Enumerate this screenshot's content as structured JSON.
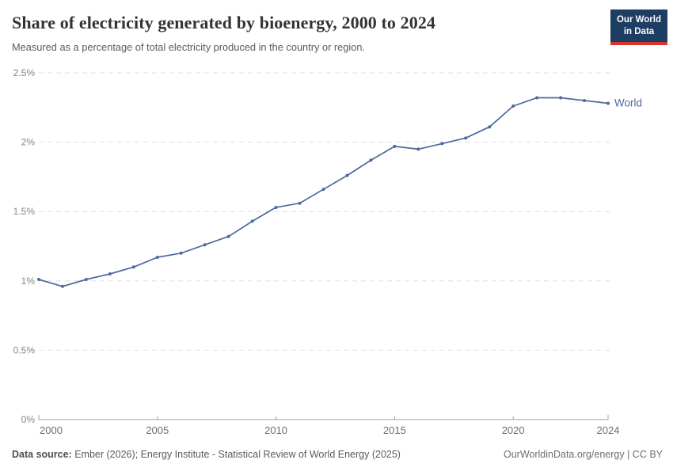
{
  "header": {
    "title": "Share of electricity generated by bioenergy, 2000 to 2024",
    "subtitle": "Measured as a percentage of total electricity produced in the country or region.",
    "logo_line1": "Our World",
    "logo_line2": "in Data"
  },
  "chart_data": {
    "type": "line",
    "title": "Share of electricity generated by bioenergy, 2000 to 2024",
    "xlabel": "",
    "ylabel": "",
    "xlim": [
      2000,
      2024
    ],
    "ylim": [
      0,
      2.5
    ],
    "x_ticks": [
      2000,
      2005,
      2010,
      2015,
      2020,
      2024
    ],
    "y_ticks": [
      {
        "value": 0,
        "label": "0%"
      },
      {
        "value": 0.5,
        "label": "0.5%"
      },
      {
        "value": 1,
        "label": "1%"
      },
      {
        "value": 1.5,
        "label": "1.5%"
      },
      {
        "value": 2,
        "label": "2%"
      },
      {
        "value": 2.5,
        "label": "2.5%"
      }
    ],
    "grid": "horizontal-dashed",
    "legend_position": "end-of-line",
    "series": [
      {
        "name": "World",
        "color": "#4c6a9c",
        "x": [
          2000,
          2001,
          2002,
          2003,
          2004,
          2005,
          2006,
          2007,
          2008,
          2009,
          2010,
          2011,
          2012,
          2013,
          2014,
          2015,
          2016,
          2017,
          2018,
          2019,
          2020,
          2021,
          2022,
          2023,
          2024
        ],
        "values": [
          1.01,
          0.96,
          1.01,
          1.05,
          1.1,
          1.17,
          1.2,
          1.26,
          1.32,
          1.43,
          1.53,
          1.56,
          1.66,
          1.76,
          1.87,
          1.97,
          1.95,
          1.99,
          2.03,
          2.11,
          2.26,
          2.32,
          2.32,
          2.3,
          2.28
        ]
      }
    ],
    "colors": {
      "gridline": "#dedede",
      "axis": "#a0a0a0",
      "x_tick_label": "#6d6d6d",
      "y_tick_label": "#858585"
    }
  },
  "footer": {
    "source_label": "Data source:",
    "source_text": " Ember (2026); Energy Institute - Statistical Review of World Energy (2025)",
    "right_text": "OurWorldinData.org/energy | CC BY"
  }
}
